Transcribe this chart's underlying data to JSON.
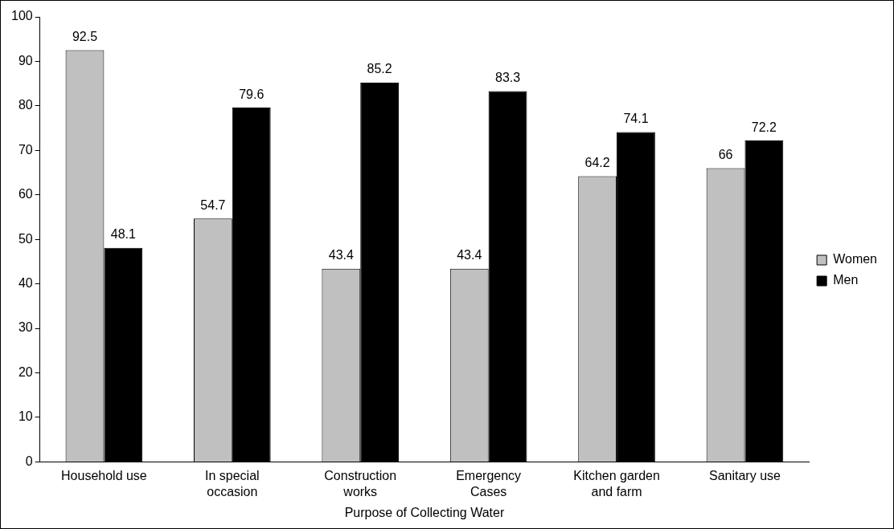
{
  "chart_data": {
    "type": "bar",
    "xlabel": "Purpose of Collecting Water",
    "categories": [
      "Household use",
      "In special occasion",
      "Construction works",
      "Emergency Cases",
      "Kitchen garden and farm",
      "Sanitary use"
    ],
    "series": [
      {
        "name": "Women",
        "color": "#c0c0c0",
        "values": [
          92.5,
          54.7,
          43.4,
          43.4,
          64.2,
          66
        ]
      },
      {
        "name": "Men",
        "color": "#000000",
        "values": [
          48.1,
          79.6,
          85.2,
          83.3,
          74.1,
          72.2
        ]
      }
    ],
    "ylim": [
      0,
      100
    ],
    "yticks": [
      0,
      10,
      20,
      30,
      40,
      50,
      60,
      70,
      80,
      90,
      100
    ],
    "grid": false,
    "legend": "right",
    "data_labels": true
  }
}
